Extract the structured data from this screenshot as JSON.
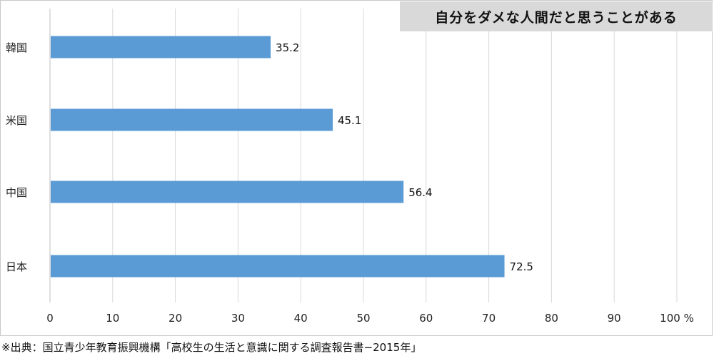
{
  "chart_data": {
    "type": "bar",
    "orientation": "horizontal",
    "title": "自分をダメな人間だと思うことがある",
    "categories": [
      "韓国",
      "米国",
      "中国",
      "日本"
    ],
    "values": [
      35.2,
      45.1,
      56.4,
      72.5
    ],
    "value_labels": [
      "35.2",
      "45.1",
      "56.4",
      "72.5"
    ],
    "xlim": [
      0,
      100
    ],
    "x_ticks": [
      "0",
      "10",
      "20",
      "30",
      "40",
      "50",
      "60",
      "70",
      "80",
      "90",
      "100"
    ],
    "x_unit": "%",
    "grid": true,
    "bar_color": "#5b9bd5",
    "grid_color": "#d9d9d9"
  },
  "source_note": "※出典：国立青少年教育振興機構「高校生の生活と意識に関する調査報告書−2015年」"
}
